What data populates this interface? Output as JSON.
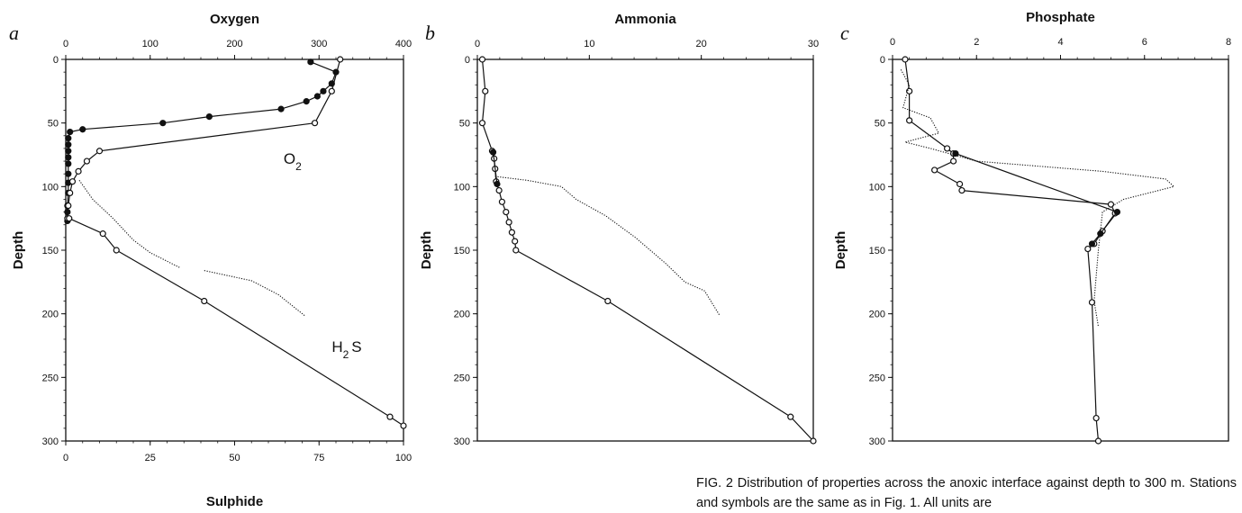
{
  "chart_data": [
    {
      "panel_letter": "a",
      "type": "line",
      "title": "Oxygen",
      "ylabel": "Depth",
      "xlabel": "",
      "xlabel_bottom": "Sulphide",
      "xlim": [
        0,
        400
      ],
      "xlim_bottom": [
        0,
        100
      ],
      "ylim": [
        0,
        300
      ],
      "y_inverted": true,
      "xticks": [
        "0",
        "100",
        "200",
        "300",
        "400"
      ],
      "xticks_bottom": [
        "0",
        "25",
        "50",
        "75",
        "100"
      ],
      "yticks": [
        "0",
        "50",
        "100",
        "150",
        "200",
        "250",
        "300"
      ],
      "grid": false,
      "annotations": [
        {
          "text": "O",
          "sub": "2",
          "x": 258,
          "y": 82
        },
        {
          "text": "H",
          "sub": "2",
          "tail": "S",
          "x": 315,
          "y": 230
        }
      ],
      "series": [
        {
          "marker": "filled-circle",
          "axis": "top",
          "line": "solid",
          "points": [
            [
              290,
              2
            ],
            [
              320,
              10
            ],
            [
              315,
              19
            ],
            [
              305,
              25
            ],
            [
              298,
              29
            ],
            [
              285,
              33
            ],
            [
              255,
              39
            ],
            [
              170,
              45
            ],
            [
              115,
              50
            ],
            [
              20,
              55
            ],
            [
              5,
              57
            ],
            [
              3,
              62
            ],
            [
              3,
              67
            ],
            [
              3,
              72
            ],
            [
              3,
              77
            ],
            [
              3,
              82
            ],
            [
              3,
              90
            ],
            [
              3,
              97
            ],
            [
              3,
              105
            ],
            [
              2,
              115
            ],
            [
              2,
              120
            ],
            [
              2,
              127
            ]
          ]
        },
        {
          "marker": "open-circle",
          "axis": "top",
          "line": "solid",
          "points": [
            [
              325,
              0
            ],
            [
              315,
              25
            ],
            [
              295,
              50
            ],
            [
              40,
              72
            ],
            [
              25,
              80
            ],
            [
              15,
              88
            ],
            [
              8,
              96
            ],
            [
              5,
              105
            ],
            [
              3,
              115
            ],
            [
              2,
              125
            ]
          ]
        },
        {
          "marker": "open-circle",
          "axis": "bottom",
          "line": "solid",
          "points": [
            [
              1,
              125
            ],
            [
              11,
              137
            ],
            [
              15,
              150
            ],
            [
              41,
              190
            ],
            [
              96,
              281
            ],
            [
              100,
              288
            ]
          ]
        },
        {
          "marker": "none",
          "axis": "bottom",
          "line": "dotted",
          "points": [
            [
              4,
              95
            ],
            [
              8,
              110
            ],
            [
              14,
              125
            ],
            [
              20,
              142
            ],
            [
              25,
              152
            ],
            [
              34,
              164
            ]
          ]
        },
        {
          "marker": "none",
          "axis": "bottom",
          "line": "dotted",
          "points": [
            [
              41,
              166
            ],
            [
              55,
              174
            ],
            [
              63,
              185
            ],
            [
              71,
              202
            ]
          ]
        }
      ]
    },
    {
      "panel_letter": "b",
      "type": "line",
      "title": "Ammonia",
      "ylabel": "Depth",
      "xlabel": "",
      "xlim": [
        0,
        34
      ],
      "ylim": [
        0,
        300
      ],
      "y_inverted": true,
      "xticks": [
        "0",
        "10",
        "20",
        "30"
      ],
      "yticks": [
        "0",
        "50",
        "100",
        "150",
        "200",
        "250",
        "300"
      ],
      "grid": false,
      "series": [
        {
          "marker": "open-circle",
          "line": "solid",
          "points": [
            [
              0.5,
              0
            ],
            [
              0.8,
              25
            ],
            [
              0.5,
              50
            ],
            [
              1.5,
              72
            ],
            [
              1.7,
              78
            ],
            [
              1.8,
              86
            ],
            [
              1.9,
              96
            ],
            [
              2.2,
              103
            ],
            [
              2.5,
              112
            ],
            [
              2.9,
              120
            ],
            [
              3.2,
              128
            ],
            [
              3.5,
              136
            ],
            [
              3.8,
              143
            ],
            [
              3.9,
              150
            ],
            [
              13.2,
              190
            ],
            [
              31.7,
              281
            ],
            [
              34,
              300
            ]
          ]
        },
        {
          "marker": "filled-circle",
          "line": "solid",
          "points": [
            [
              1.6,
              73
            ],
            [
              2.0,
              98
            ]
          ]
        },
        {
          "marker": "none",
          "line": "dotted",
          "points": [
            [
              1.8,
              92
            ],
            [
              5,
              95
            ],
            [
              8.5,
              100
            ],
            [
              10,
              110
            ],
            [
              13,
              123
            ],
            [
              16,
              140
            ],
            [
              19,
              160
            ],
            [
              21,
              175
            ],
            [
              23,
              182
            ],
            [
              24.5,
              201
            ]
          ]
        }
      ]
    },
    {
      "panel_letter": "c",
      "type": "line",
      "title": "Phosphate",
      "ylabel": "Depth",
      "xlabel": "",
      "xlim": [
        0,
        8
      ],
      "ylim": [
        0,
        300
      ],
      "y_inverted": true,
      "xticks": [
        "0",
        "2",
        "4",
        "6",
        "8"
      ],
      "yticks": [
        "0",
        "50",
        "100",
        "150",
        "200",
        "250",
        "300"
      ],
      "grid": false,
      "series": [
        {
          "marker": "open-circle",
          "line": "solid",
          "points": [
            [
              0.3,
              0
            ],
            [
              0.4,
              25
            ],
            [
              0.4,
              48
            ],
            [
              1.3,
              70
            ],
            [
              1.45,
              74
            ],
            [
              1.45,
              80
            ],
            [
              1.0,
              87
            ],
            [
              1.6,
              98
            ],
            [
              1.65,
              103
            ],
            [
              5.2,
              114
            ],
            [
              5.3,
              121
            ],
            [
              5.0,
              135
            ],
            [
              4.8,
              145
            ],
            [
              4.65,
              149
            ],
            [
              4.75,
              191
            ],
            [
              4.85,
              282
            ],
            [
              4.9,
              300
            ]
          ]
        },
        {
          "marker": "filled-circle",
          "line": "solid",
          "points": [
            [
              1.5,
              74
            ],
            [
              5.35,
              120
            ],
            [
              4.95,
              137
            ],
            [
              4.75,
              145
            ]
          ]
        },
        {
          "marker": "none",
          "line": "dotted",
          "points": [
            [
              0.2,
              8
            ],
            [
              0.4,
              20
            ],
            [
              0.25,
              38
            ],
            [
              0.9,
              46
            ],
            [
              1.1,
              58
            ],
            [
              0.3,
              65
            ],
            [
              0.9,
              70
            ],
            [
              2.0,
              80
            ],
            [
              5.0,
              88
            ],
            [
              6.5,
              94
            ],
            [
              6.7,
              100
            ],
            [
              5.5,
              110
            ],
            [
              5.0,
              120
            ],
            [
              4.9,
              150
            ],
            [
              4.8,
              190
            ],
            [
              4.9,
              210
            ]
          ]
        }
      ]
    }
  ],
  "caption": "FIG. 2 Distribution of properties across the anoxic interface against depth to 300 m. Stations and symbols are the same as in Fig. 1. All units are"
}
